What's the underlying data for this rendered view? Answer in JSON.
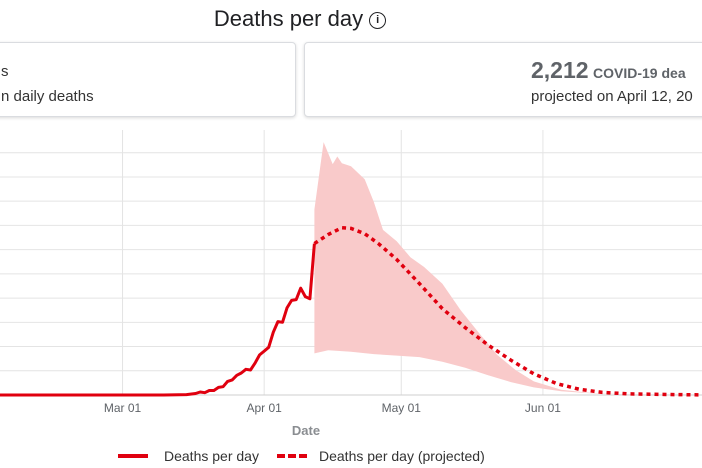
{
  "header": {
    "title": "Deaths per day",
    "info_icon": "info-circle-icon"
  },
  "cards": {
    "left": {
      "line1": "s",
      "line2": "n daily deaths"
    },
    "right": {
      "value": "2,212",
      "label": "COVID-19 dea",
      "sub": "projected on April 12, 20"
    }
  },
  "legend": {
    "actual": "Deaths per day",
    "projected": "Deaths per day (projected)"
  },
  "chart_data": {
    "type": "line",
    "xlabel": "Date",
    "ylabel": "",
    "x_tick_labels": [
      "Mar 01",
      "Apr 01",
      "May 01",
      "Jun 01"
    ],
    "x_tick_dates": [
      "2020-03-01",
      "2020-04-01",
      "2020-05-01",
      "2020-06-01"
    ],
    "xlim": [
      "2020-02-01",
      "2020-07-08"
    ],
    "ylim": [
      0,
      3500
    ],
    "y_gridlines": [
      0,
      320,
      640,
      960,
      1280,
      1600,
      1920,
      2240,
      2560,
      2880,
      3200
    ],
    "grid": true,
    "legend_position": "bottom",
    "colors": {
      "line": "#e0000f",
      "band": "#f9caca",
      "grid": "#e4e4e4"
    },
    "series": [
      {
        "name": "Deaths per day",
        "style": "solid",
        "points": [
          [
            "2020-02-01",
            0
          ],
          [
            "2020-02-20",
            0
          ],
          [
            "2020-03-10",
            0
          ],
          [
            "2020-03-15",
            5
          ],
          [
            "2020-03-17",
            20
          ],
          [
            "2020-03-18",
            40
          ],
          [
            "2020-03-19",
            30
          ],
          [
            "2020-03-20",
            60
          ],
          [
            "2020-03-21",
            60
          ],
          [
            "2020-03-22",
            100
          ],
          [
            "2020-03-23",
            110
          ],
          [
            "2020-03-24",
            180
          ],
          [
            "2020-03-25",
            200
          ],
          [
            "2020-03-26",
            260
          ],
          [
            "2020-03-27",
            290
          ],
          [
            "2020-03-28",
            340
          ],
          [
            "2020-03-29",
            330
          ],
          [
            "2020-03-30",
            420
          ],
          [
            "2020-03-31",
            530
          ],
          [
            "2020-04-01",
            580
          ],
          [
            "2020-04-02",
            630
          ],
          [
            "2020-04-03",
            830
          ],
          [
            "2020-04-04",
            970
          ],
          [
            "2020-04-05",
            960
          ],
          [
            "2020-04-06",
            1150
          ],
          [
            "2020-04-07",
            1250
          ],
          [
            "2020-04-08",
            1260
          ],
          [
            "2020-04-09",
            1410
          ],
          [
            "2020-04-10",
            1300
          ],
          [
            "2020-04-11",
            1270
          ],
          [
            "2020-04-12",
            2000
          ]
        ]
      },
      {
        "name": "Deaths per day (projected)",
        "style": "dashed",
        "points": [
          [
            "2020-04-12",
            2000
          ],
          [
            "2020-04-15",
            2120
          ],
          [
            "2020-04-18",
            2210
          ],
          [
            "2020-04-20",
            2200
          ],
          [
            "2020-04-23",
            2130
          ],
          [
            "2020-04-26",
            2000
          ],
          [
            "2020-04-30",
            1790
          ],
          [
            "2020-05-05",
            1470
          ],
          [
            "2020-05-10",
            1140
          ],
          [
            "2020-05-15",
            890
          ],
          [
            "2020-05-20",
            660
          ],
          [
            "2020-05-25",
            460
          ],
          [
            "2020-05-30",
            280
          ],
          [
            "2020-06-04",
            150
          ],
          [
            "2020-06-09",
            75
          ],
          [
            "2020-06-14",
            35
          ],
          [
            "2020-06-20",
            15
          ],
          [
            "2020-06-30",
            5
          ],
          [
            "2020-07-08",
            0
          ]
        ]
      }
    ],
    "uncertainty_band": {
      "upper": [
        [
          "2020-04-12",
          2450
        ],
        [
          "2020-04-14",
          3340
        ],
        [
          "2020-04-16",
          3050
        ],
        [
          "2020-04-17",
          3150
        ],
        [
          "2020-04-18",
          3060
        ],
        [
          "2020-04-20",
          3020
        ],
        [
          "2020-04-23",
          2850
        ],
        [
          "2020-04-25",
          2550
        ],
        [
          "2020-04-27",
          2180
        ],
        [
          "2020-04-30",
          2030
        ],
        [
          "2020-05-03",
          1820
        ],
        [
          "2020-05-06",
          1690
        ],
        [
          "2020-05-10",
          1470
        ],
        [
          "2020-05-14",
          1120
        ],
        [
          "2020-05-18",
          820
        ],
        [
          "2020-05-22",
          530
        ],
        [
          "2020-05-26",
          330
        ],
        [
          "2020-05-30",
          180
        ],
        [
          "2020-06-05",
          70
        ],
        [
          "2020-06-12",
          25
        ],
        [
          "2020-06-20",
          8
        ],
        [
          "2020-07-08",
          0
        ]
      ],
      "lower": [
        [
          "2020-04-12",
          550
        ],
        [
          "2020-04-15",
          590
        ],
        [
          "2020-04-20",
          570
        ],
        [
          "2020-04-25",
          540
        ],
        [
          "2020-04-30",
          520
        ],
        [
          "2020-05-05",
          500
        ],
        [
          "2020-05-10",
          440
        ],
        [
          "2020-05-15",
          360
        ],
        [
          "2020-05-20",
          260
        ],
        [
          "2020-05-25",
          170
        ],
        [
          "2020-05-30",
          100
        ],
        [
          "2020-06-05",
          50
        ],
        [
          "2020-06-12",
          20
        ],
        [
          "2020-06-20",
          6
        ],
        [
          "2020-07-08",
          0
        ]
      ]
    }
  }
}
